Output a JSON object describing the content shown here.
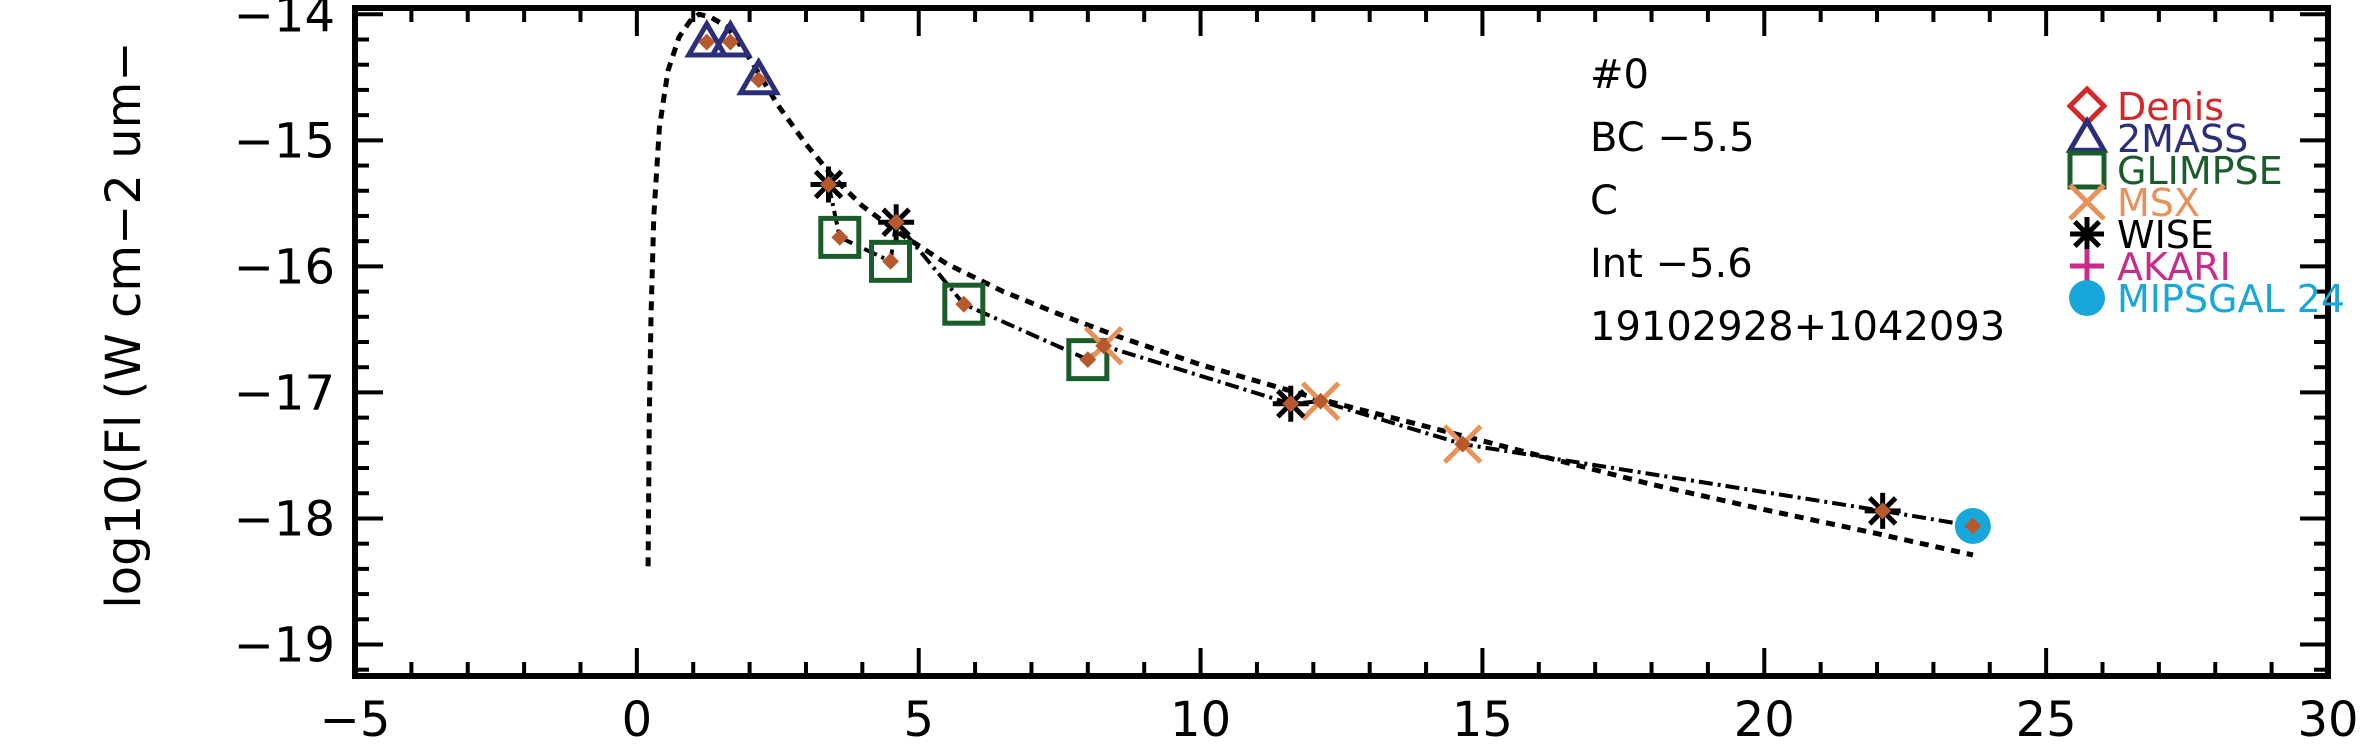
{
  "chart_data": {
    "type": "scatter",
    "title": "",
    "xlabel": "",
    "ylabel": "log10(Fl (W cm−2 um−",
    "xlim": [
      -5,
      30
    ],
    "ylim": [
      -19.25,
      -13.95
    ],
    "x_ticks": [
      -5,
      0,
      5,
      10,
      15,
      20,
      25,
      30
    ],
    "x_tick_labels": [
      "−5",
      "0",
      "5",
      "10",
      "15",
      "20",
      "25",
      "30"
    ],
    "y_ticks": [
      -19,
      -18,
      -17,
      -16,
      -15,
      -14
    ],
    "y_tick_labels": [
      "−19",
      "−18",
      "−17",
      "−16",
      "−15",
      "−14"
    ],
    "grid": false,
    "legend_position": "top-right",
    "annotations": [
      "#0",
      "BC  −5.5",
      "C",
      "Int  −5.6",
      "19102928+1042093"
    ],
    "series": [
      {
        "name": "Denis",
        "marker": "diamond",
        "color": "#d62728",
        "points": []
      },
      {
        "name": "2MASS",
        "marker": "triangle",
        "color": "#2b2f7a",
        "points": [
          [
            1.24,
            -14.22
          ],
          [
            1.66,
            -14.22
          ],
          [
            2.16,
            -14.52
          ]
        ]
      },
      {
        "name": "GLIMPSE",
        "marker": "square",
        "color": "#1a5c2a",
        "points": [
          [
            3.6,
            -15.77
          ],
          [
            4.5,
            -15.96
          ],
          [
            5.8,
            -16.3
          ],
          [
            8.0,
            -16.74
          ]
        ]
      },
      {
        "name": "MSX",
        "marker": "cross",
        "color": "#e8915a",
        "points": [
          [
            8.28,
            -16.63
          ],
          [
            12.13,
            -17.07
          ],
          [
            14.65,
            -17.41
          ]
        ]
      },
      {
        "name": "WISE",
        "marker": "asterisk",
        "color": "#000000",
        "points": [
          [
            3.4,
            -15.35
          ],
          [
            4.6,
            -15.65
          ],
          [
            11.6,
            -17.09
          ],
          [
            22.1,
            -17.94
          ]
        ]
      },
      {
        "name": "AKARI",
        "marker": "plus",
        "color": "#cc2a8a",
        "points": []
      },
      {
        "name": "MIPSGAL 24",
        "marker": "filled-circle",
        "color": "#18a7db",
        "points": [
          [
            23.7,
            -18.06
          ]
        ]
      }
    ],
    "model_points": {
      "color": "#b65a2e",
      "points": [
        [
          1.24,
          -14.22
        ],
        [
          1.66,
          -14.22
        ],
        [
          2.16,
          -14.52
        ],
        [
          3.4,
          -15.35
        ],
        [
          3.6,
          -15.77
        ],
        [
          4.5,
          -15.96
        ],
        [
          4.6,
          -15.65
        ],
        [
          5.8,
          -16.3
        ],
        [
          8.0,
          -16.74
        ],
        [
          8.28,
          -16.63
        ],
        [
          11.6,
          -17.09
        ],
        [
          12.13,
          -17.07
        ],
        [
          14.65,
          -17.41
        ],
        [
          22.1,
          -17.94
        ],
        [
          23.7,
          -18.06
        ]
      ]
    },
    "dashed_curve": [
      [
        0.2,
        -18.38
      ],
      [
        0.22,
        -17.2
      ],
      [
        0.25,
        -16.4
      ],
      [
        0.3,
        -15.6
      ],
      [
        0.4,
        -14.9
      ],
      [
        0.55,
        -14.45
      ],
      [
        0.75,
        -14.18
      ],
      [
        0.95,
        -14.05
      ],
      [
        1.1,
        -14.0
      ],
      [
        1.3,
        -14.02
      ],
      [
        1.6,
        -14.1
      ],
      [
        2.0,
        -14.35
      ],
      [
        2.5,
        -14.72
      ],
      [
        3.0,
        -15.03
      ],
      [
        3.5,
        -15.3
      ],
      [
        4.0,
        -15.52
      ],
      [
        4.6,
        -15.72
      ],
      [
        5.5,
        -15.98
      ],
      [
        6.5,
        -16.2
      ],
      [
        7.5,
        -16.38
      ],
      [
        8.5,
        -16.55
      ],
      [
        10.0,
        -16.78
      ],
      [
        12.0,
        -17.04
      ],
      [
        14.0,
        -17.27
      ],
      [
        16.0,
        -17.5
      ],
      [
        18.0,
        -17.73
      ],
      [
        20.0,
        -17.93
      ],
      [
        22.0,
        -18.12
      ],
      [
        23.7,
        -18.29
      ]
    ],
    "dashdot_curve": [
      [
        3.4,
        -15.35
      ],
      [
        3.6,
        -15.77
      ],
      [
        4.5,
        -15.96
      ],
      [
        4.6,
        -15.65
      ],
      [
        5.8,
        -16.3
      ],
      [
        8.0,
        -16.74
      ],
      [
        8.28,
        -16.63
      ],
      [
        11.6,
        -17.09
      ],
      [
        12.13,
        -17.07
      ],
      [
        14.65,
        -17.41
      ],
      [
        22.1,
        -17.94
      ],
      [
        23.7,
        -18.06
      ]
    ]
  }
}
